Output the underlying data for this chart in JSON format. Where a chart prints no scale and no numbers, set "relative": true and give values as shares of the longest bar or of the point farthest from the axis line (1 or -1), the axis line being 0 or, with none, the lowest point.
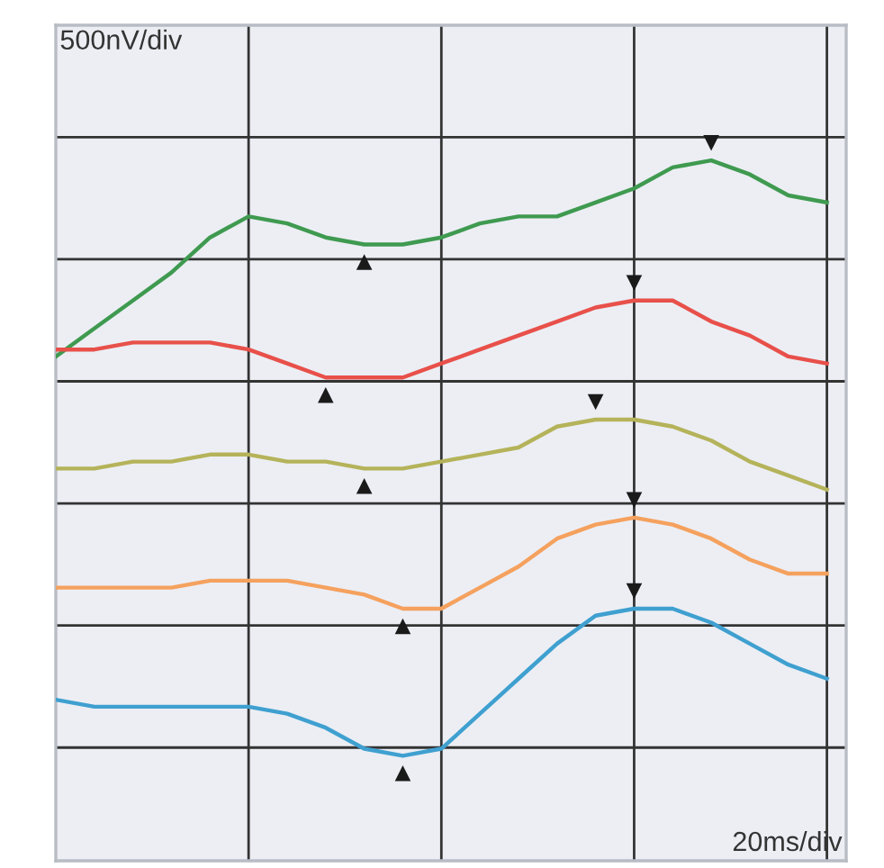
{
  "chart_data": {
    "type": "line",
    "relative": true,
    "grid": true,
    "line_style": "solid",
    "marker": "none",
    "annotations": [
      "500nV/div",
      "20ms/div"
    ],
    "categories": [
      null,
      null,
      null,
      null,
      null,
      null,
      null,
      null,
      null,
      null,
      null,
      null,
      null,
      null,
      null,
      null,
      null,
      null,
      null,
      null,
      null
    ],
    "series": [
      {
        "color": "#3f9a50",
        "values": [
          0.72,
          0.76,
          0.8,
          0.84,
          0.89,
          0.92,
          0.91,
          0.89,
          0.88,
          0.88,
          0.89,
          0.91,
          0.92,
          0.92,
          0.94,
          0.96,
          0.99,
          1.0,
          0.98,
          0.95,
          0.94
        ]
      },
      {
        "color": "#e8504a",
        "values": [
          0.73,
          0.73,
          0.74,
          0.74,
          0.74,
          0.73,
          0.71,
          0.69,
          0.69,
          0.69,
          0.71,
          0.73,
          0.75,
          0.77,
          0.79,
          0.8,
          0.8,
          0.77,
          0.75,
          0.72,
          0.71
        ]
      },
      {
        "color": "#b5b35a",
        "values": [
          0.56,
          0.56,
          0.57,
          0.57,
          0.58,
          0.58,
          0.57,
          0.57,
          0.56,
          0.56,
          0.57,
          0.58,
          0.59,
          0.62,
          0.63,
          0.63,
          0.62,
          0.6,
          0.57,
          0.55,
          0.53
        ]
      },
      {
        "color": "#f5a15e",
        "values": [
          0.39,
          0.39,
          0.39,
          0.39,
          0.4,
          0.4,
          0.4,
          0.39,
          0.38,
          0.36,
          0.36,
          0.39,
          0.42,
          0.46,
          0.48,
          0.49,
          0.48,
          0.46,
          0.43,
          0.41,
          0.41
        ]
      },
      {
        "color": "#3fa0d0",
        "values": [
          0.23,
          0.22,
          0.22,
          0.22,
          0.22,
          0.22,
          0.21,
          0.19,
          0.16,
          0.15,
          0.16,
          0.21,
          0.26,
          0.31,
          0.35,
          0.36,
          0.36,
          0.34,
          0.31,
          0.28,
          0.26
        ]
      }
    ]
  }
}
